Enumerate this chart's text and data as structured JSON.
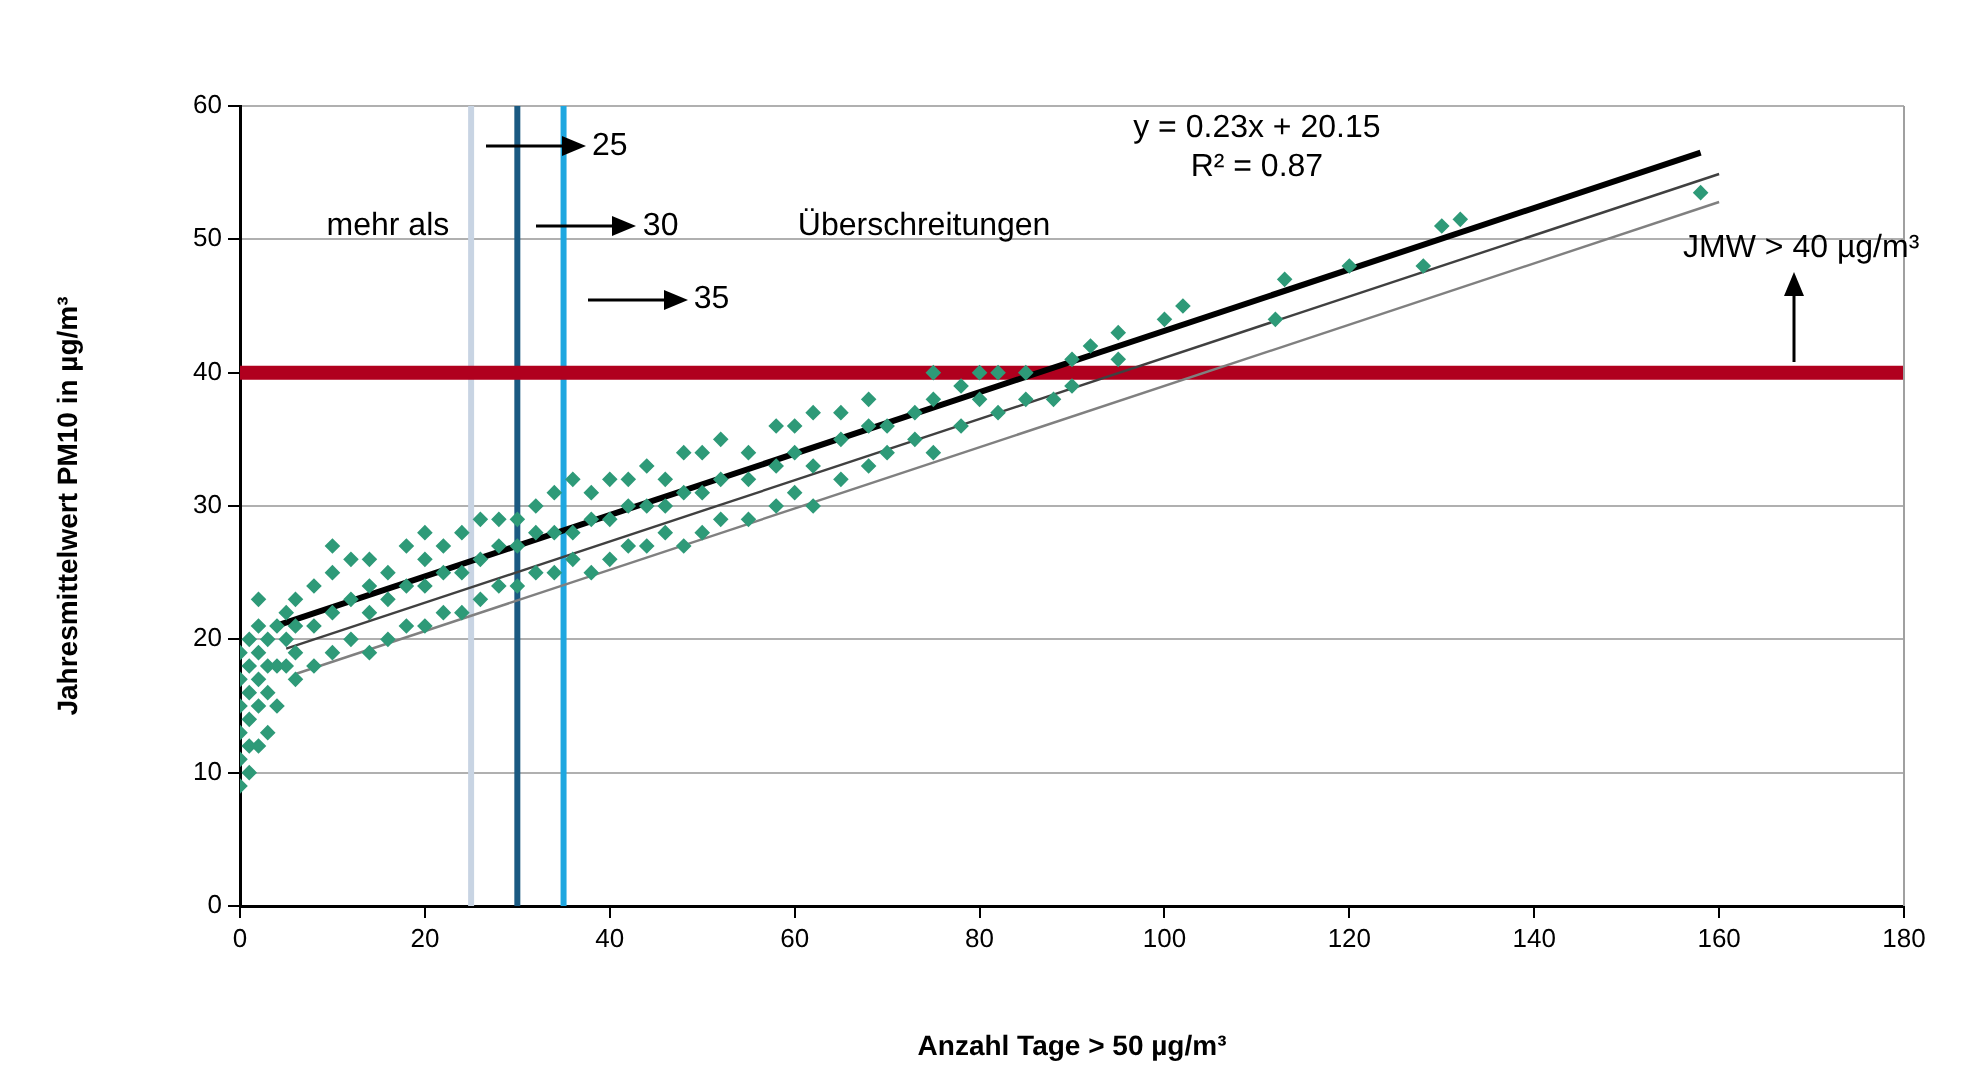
{
  "chart_data": {
    "type": "scatter",
    "xlabel": "Anzahl Tage > 50 µg/m³",
    "ylabel": "Jahresmittelwert PM10 in µg/m³",
    "xlim": [
      0,
      180
    ],
    "xticks": [
      0,
      20,
      40,
      60,
      80,
      100,
      120,
      140,
      160,
      180
    ],
    "ylim": [
      0,
      60
    ],
    "yticks": [
      0,
      10,
      20,
      30,
      40,
      50,
      60
    ],
    "grid": "y",
    "legend": false,
    "series": [
      {
        "marker": "diamond",
        "color": "#2e9a78",
        "x": [
          0,
          0,
          0,
          0,
          0,
          0,
          1,
          1,
          1,
          1,
          1,
          1,
          2,
          2,
          2,
          2,
          2,
          2,
          3,
          3,
          3,
          3,
          4,
          4,
          4,
          5,
          5,
          5,
          6,
          6,
          6,
          6,
          8,
          8,
          8,
          10,
          10,
          10,
          10,
          12,
          12,
          12,
          14,
          14,
          14,
          14,
          16,
          16,
          16,
          18,
          18,
          18,
          20,
          20,
          20,
          20,
          22,
          22,
          22,
          24,
          24,
          24,
          26,
          26,
          26,
          28,
          28,
          28,
          30,
          30,
          30,
          32,
          32,
          32,
          34,
          34,
          34,
          36,
          36,
          36,
          38,
          38,
          38,
          40,
          40,
          40,
          42,
          42,
          42,
          44,
          44,
          44,
          46,
          46,
          46,
          48,
          48,
          48,
          50,
          50,
          50,
          52,
          52,
          52,
          55,
          55,
          55,
          58,
          58,
          58,
          60,
          60,
          60,
          62,
          62,
          62,
          65,
          65,
          65,
          68,
          68,
          68,
          70,
          70,
          73,
          73,
          75,
          75,
          75,
          78,
          78,
          80,
          80,
          82,
          82,
          85,
          85,
          88,
          90,
          90,
          92,
          95,
          95,
          100,
          102,
          112,
          113,
          120,
          128,
          130,
          132,
          158
        ],
        "values": [
          9,
          11,
          13,
          15,
          17,
          19,
          10,
          12,
          14,
          16,
          18,
          20,
          12,
          15,
          17,
          19,
          21,
          23,
          13,
          16,
          18,
          20,
          15,
          18,
          21,
          18,
          20,
          22,
          17,
          19,
          21,
          23,
          18,
          21,
          24,
          19,
          22,
          25,
          27,
          20,
          23,
          26,
          19,
          22,
          24,
          26,
          20,
          23,
          25,
          21,
          24,
          27,
          21,
          24,
          26,
          28,
          22,
          25,
          27,
          22,
          25,
          28,
          23,
          26,
          29,
          24,
          27,
          29,
          24,
          27,
          29,
          25,
          28,
          30,
          25,
          28,
          31,
          26,
          28,
          32,
          25,
          29,
          31,
          26,
          29,
          32,
          27,
          30,
          32,
          27,
          30,
          33,
          28,
          30,
          32,
          27,
          31,
          34,
          28,
          31,
          34,
          29,
          32,
          35,
          29,
          32,
          34,
          30,
          33,
          36,
          31,
          34,
          36,
          30,
          33,
          37,
          32,
          35,
          37,
          33,
          36,
          38,
          34,
          36,
          35,
          37,
          34,
          38,
          40,
          36,
          39,
          38,
          40,
          37,
          40,
          38,
          40,
          38,
          39,
          41,
          42,
          41,
          43,
          44,
          45,
          44,
          47,
          48,
          48,
          51,
          51.5,
          53.5
        ]
      },
      {
        "type": "line",
        "marker": "none",
        "color": "#000000",
        "x": [
          4.3,
          158
        ],
        "values": [
          21.1,
          56.5
        ]
      },
      {
        "type": "line",
        "marker": "none",
        "color": "#404040",
        "x": [
          5,
          160
        ],
        "values": [
          19.3,
          54.9
        ]
      },
      {
        "type": "line",
        "marker": "none",
        "color": "#808080",
        "x": [
          6,
          160
        ],
        "values": [
          17.4,
          52.8
        ]
      }
    ],
    "ref_lines": [
      {
        "axis": "x",
        "value": 25,
        "label": null,
        "color": "#c8d4e3"
      },
      {
        "axis": "x",
        "value": 30,
        "label": null,
        "color": "#1b5a82"
      },
      {
        "axis": "x",
        "value": 35,
        "label": null,
        "color": "#1fa7e0"
      },
      {
        "axis": "y",
        "value": 40,
        "label": null,
        "color": "#b0001e"
      }
    ],
    "annotations": [
      "mehr als",
      "25",
      "30",
      "35",
      "Überschreitungen",
      "y = 0.23x + 20.15",
      "R² = 0.87",
      {
        "text": "JMW > 40 µg/m³",
        "x": 168,
        "y": 40
      }
    ]
  }
}
